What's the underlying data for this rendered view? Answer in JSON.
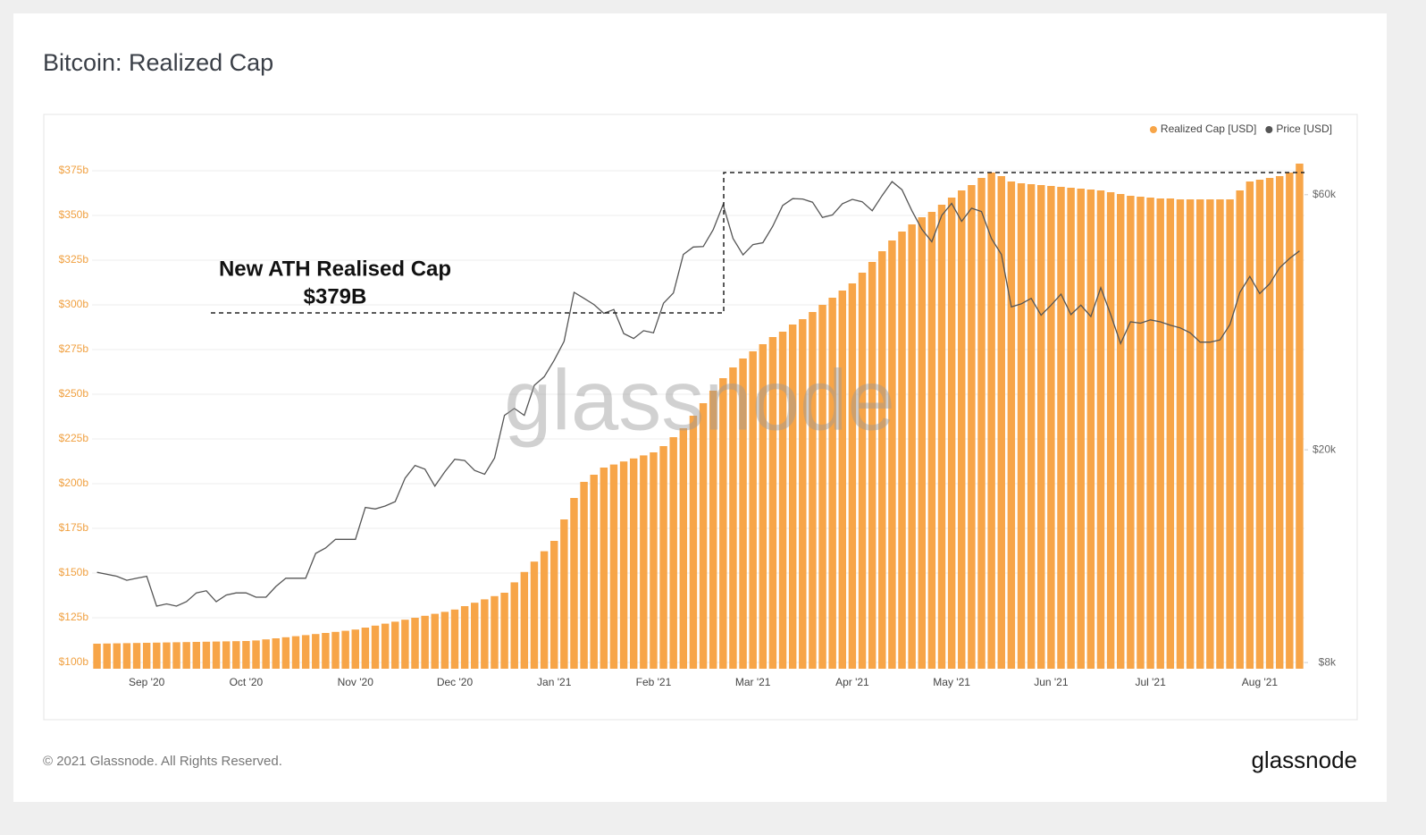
{
  "chart_data": {
    "type": "bar",
    "title": "Bitcoin: Realized Cap",
    "categories": [
      null,
      null,
      null,
      null,
      null,
      "Sep '20",
      null,
      null,
      null,
      null,
      null,
      null,
      null,
      null,
      null,
      "Oct '20",
      null,
      null,
      null,
      null,
      null,
      null,
      null,
      null,
      null,
      null,
      "Nov '20",
      null,
      null,
      null,
      null,
      null,
      null,
      null,
      null,
      null,
      "Dec '20",
      null,
      null,
      null,
      null,
      null,
      null,
      null,
      null,
      null,
      "Jan '21",
      null,
      null,
      null,
      null,
      null,
      null,
      null,
      null,
      null,
      "Feb '21",
      null,
      null,
      null,
      null,
      null,
      null,
      null,
      null,
      null,
      "Mar '21",
      null,
      null,
      null,
      null,
      null,
      null,
      null,
      null,
      null,
      "Apr '21",
      null,
      null,
      null,
      null,
      null,
      null,
      null,
      null,
      null,
      "May '21",
      null,
      null,
      null,
      null,
      null,
      null,
      null,
      null,
      null,
      "Jun '21",
      null,
      null,
      null,
      null,
      null,
      null,
      null,
      null,
      null,
      "Jul '21",
      null,
      null,
      null,
      null,
      null,
      null,
      null,
      null,
      null,
      null,
      "Aug '21",
      null,
      null,
      null,
      null
    ],
    "series": [
      {
        "name": "Realized Cap [USD]",
        "color": "#f7a548",
        "type": "bar",
        "values": [
          110.5,
          110.6,
          110.7,
          110.8,
          110.9,
          111.0,
          111.1,
          111.2,
          111.3,
          111.4,
          111.5,
          111.6,
          111.7,
          111.8,
          111.9,
          112.0,
          112.3,
          112.9,
          113.5,
          114.1,
          114.7,
          115.3,
          115.9,
          116.5,
          117.1,
          117.7,
          118.4,
          119.5,
          120.6,
          121.7,
          122.8,
          123.9,
          125.0,
          126.1,
          127.2,
          128.3,
          129.6,
          131.5,
          133.4,
          135.3,
          137.1,
          139.0,
          144.8,
          150.6,
          156.4,
          162.2,
          168,
          180,
          192,
          201,
          205,
          209,
          210.7,
          212.4,
          214.1,
          215.8,
          217.5,
          221,
          226,
          231,
          238,
          245,
          252,
          259,
          265,
          270,
          274,
          278,
          282,
          285,
          289,
          292,
          296,
          300,
          304,
          308,
          312,
          318,
          324,
          330,
          336,
          341,
          345,
          349,
          352,
          356,
          360,
          364,
          367,
          371,
          374,
          372,
          369,
          368,
          367.5,
          367,
          366.5,
          366,
          365.5,
          365,
          364.5,
          364,
          363,
          362,
          361,
          360.5,
          360,
          359.5,
          359.5,
          359,
          359,
          359,
          359,
          359,
          359,
          364,
          369,
          370,
          371,
          372,
          374,
          379
        ]
      },
      {
        "name": "Price [USD]",
        "color": "#555555",
        "type": "line",
        "axis": "y2",
        "values": [
          11800,
          11700,
          11600,
          11400,
          11500,
          11600,
          10200,
          10300,
          10200,
          10400,
          10800,
          10900,
          10400,
          10700,
          10800,
          10800,
          10600,
          10600,
          11100,
          11500,
          11500,
          11500,
          12800,
          13100,
          13600,
          13600,
          13600,
          15600,
          15500,
          15700,
          16000,
          17700,
          18700,
          18400,
          17100,
          18200,
          19200,
          19100,
          18300,
          18000,
          19300,
          23200,
          23900,
          23200,
          26400,
          27400,
          29400,
          31900,
          39400,
          38400,
          37400,
          36000,
          36600,
          33000,
          32300,
          33400,
          33100,
          37600,
          39300,
          46400,
          47900,
          48000,
          51600,
          57500,
          49700,
          46300,
          48400,
          48800,
          52400,
          57300,
          59000,
          58900,
          58100,
          54400,
          55000,
          57700,
          58800,
          58200,
          56000,
          59800,
          63500,
          61300,
          56000,
          51700,
          49000,
          54900,
          57800,
          53500,
          56600,
          55800,
          49700,
          46400,
          37000,
          37500,
          38400,
          35700,
          37300,
          39100,
          35800,
          37300,
          35500,
          40200,
          35800,
          31600,
          34700,
          34500,
          35000,
          34700,
          34200,
          33800,
          33100,
          31800,
          31800,
          32100,
          34300,
          39400,
          42200,
          39200,
          40900,
          43800,
          45600,
          47100
        ]
      }
    ],
    "ylim": [
      96.5,
      396.5
    ],
    "yticks": [
      {
        "value": 100,
        "label": "$100b"
      },
      {
        "value": 125,
        "label": "$125b"
      },
      {
        "value": 150,
        "label": "$150b"
      },
      {
        "value": 175,
        "label": "$175b"
      },
      {
        "value": 200,
        "label": "$200b"
      },
      {
        "value": 225,
        "label": "$225b"
      },
      {
        "value": 250,
        "label": "$250b"
      },
      {
        "value": 275,
        "label": "$275b"
      },
      {
        "value": 300,
        "label": "$300b"
      },
      {
        "value": 325,
        "label": "$325b"
      },
      {
        "value": 350,
        "label": "$350b"
      },
      {
        "value": 375,
        "label": "$375b"
      }
    ],
    "y2lim": [
      7790,
      78500
    ],
    "y2log": true,
    "y2ticks": [
      {
        "value": 8000,
        "label": "$8k"
      },
      {
        "value": 20000,
        "label": "$20k"
      },
      {
        "value": 60000,
        "label": "$60k"
      }
    ],
    "grid": true,
    "legend": "top-right",
    "annotation": [
      "New ATH Realised Cap",
      "$379B"
    ],
    "watermark": "glassnode"
  },
  "footer": "© 2021 Glassnode. All Rights Reserved.",
  "logo": "glassnode"
}
